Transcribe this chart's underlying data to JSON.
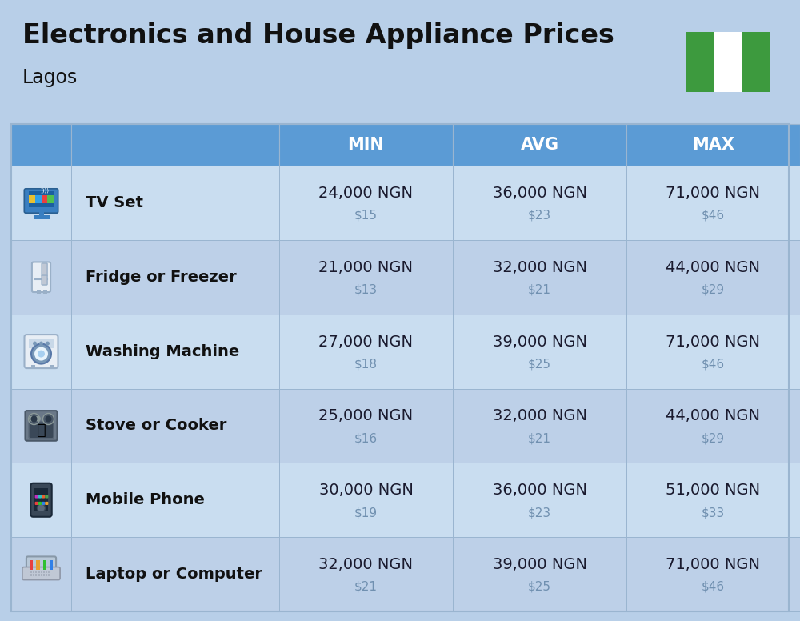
{
  "title": "Electronics and House Appliance Prices",
  "subtitle": "Lagos",
  "background_color": "#b8cfe8",
  "header_color": "#5b9bd5",
  "header_text_color": "#ffffff",
  "row_bg_even": "#c9ddf0",
  "row_bg_odd": "#bdd0e8",
  "cell_line_color": "#9ab5d0",
  "columns": [
    "MIN",
    "AVG",
    "MAX"
  ],
  "items": [
    {
      "name": "TV Set",
      "min_ngn": "24,000 NGN",
      "min_usd": "$15",
      "avg_ngn": "36,000 NGN",
      "avg_usd": "$23",
      "max_ngn": "71,000 NGN",
      "max_usd": "$46"
    },
    {
      "name": "Fridge or Freezer",
      "min_ngn": "21,000 NGN",
      "min_usd": "$13",
      "avg_ngn": "32,000 NGN",
      "avg_usd": "$21",
      "max_ngn": "44,000 NGN",
      "max_usd": "$29"
    },
    {
      "name": "Washing Machine",
      "min_ngn": "27,000 NGN",
      "min_usd": "$18",
      "avg_ngn": "39,000 NGN",
      "avg_usd": "$25",
      "max_ngn": "71,000 NGN",
      "max_usd": "$46"
    },
    {
      "name": "Stove or Cooker",
      "min_ngn": "25,000 NGN",
      "min_usd": "$16",
      "avg_ngn": "32,000 NGN",
      "avg_usd": "$21",
      "max_ngn": "44,000 NGN",
      "max_usd": "$29"
    },
    {
      "name": "Mobile Phone",
      "min_ngn": "30,000 NGN",
      "min_usd": "$19",
      "avg_ngn": "36,000 NGN",
      "avg_usd": "$23",
      "max_ngn": "51,000 NGN",
      "max_usd": "$33"
    },
    {
      "name": "Laptop or Computer",
      "min_ngn": "32,000 NGN",
      "min_usd": "$21",
      "avg_ngn": "39,000 NGN",
      "avg_usd": "$25",
      "max_ngn": "71,000 NGN",
      "max_usd": "$46"
    }
  ],
  "nigeria_flag_green": "#3d9a3e",
  "nigeria_flag_white": "#ffffff",
  "ngn_color": "#1a1a2e",
  "usd_color": "#7090b0",
  "title_fontsize": 24,
  "subtitle_fontsize": 17,
  "header_fontsize": 15,
  "name_fontsize": 14,
  "ngn_fontsize": 14,
  "usd_fontsize": 11
}
